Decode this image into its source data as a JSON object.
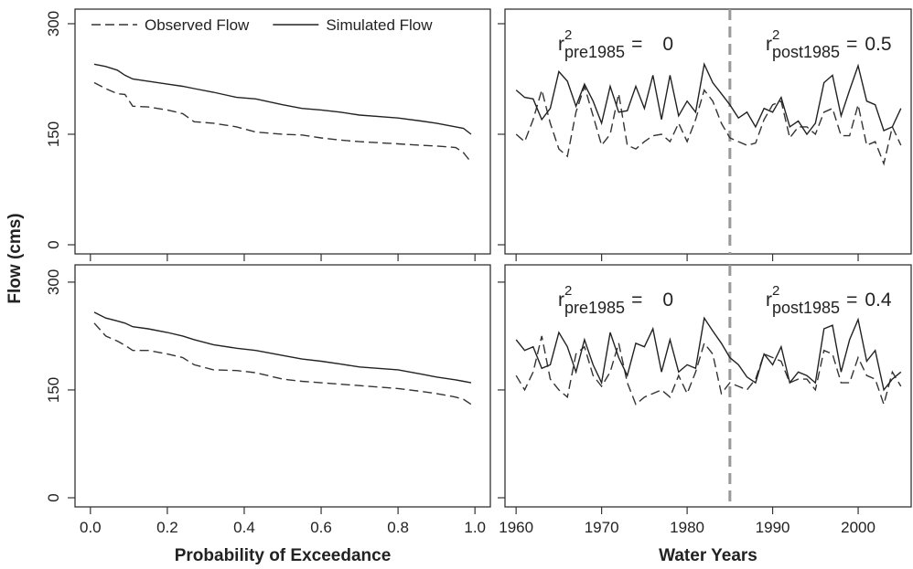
{
  "ylabel": "Flow (cms)",
  "chart_data": [
    {
      "type": "line",
      "xlim": [
        -0.04,
        1.04
      ],
      "ylim": [
        -12.4,
        319.8
      ],
      "xticks": [
        {
          "value": 0,
          "label": "0.0"
        },
        0.2,
        0.4,
        0.6,
        0.8,
        {
          "value": 1,
          "label": "1.0"
        }
      ],
      "yticks": [
        0,
        150,
        300
      ],
      "show_xtick_labels": false,
      "show_ytick_labels": true,
      "legend": true,
      "legend_position": "top-left",
      "x": [
        0.01,
        0.04,
        0.07,
        0.09,
        0.11,
        0.15,
        0.2,
        0.24,
        0.27,
        0.32,
        0.38,
        0.43,
        0.5,
        0.55,
        0.6,
        0.65,
        0.7,
        0.8,
        0.86,
        0.9,
        0.95,
        0.97,
        0.99
      ],
      "series": [
        {
          "name": "Observed Flow",
          "color": "#333333",
          "style": "dashed",
          "values": [
            220,
            212,
            205,
            204,
            188,
            187,
            183,
            178,
            167,
            165,
            160,
            153,
            150,
            149,
            145,
            142,
            140,
            137,
            135,
            134,
            132,
            125,
            112
          ]
        },
        {
          "name": "Simulated Flow",
          "color": "#222222",
          "style": "solid",
          "values": [
            245,
            242,
            237,
            230,
            225,
            222,
            218,
            215,
            212,
            207,
            200,
            198,
            190,
            185,
            183,
            180,
            176,
            172,
            168,
            165,
            160,
            158,
            150
          ]
        }
      ]
    },
    {
      "type": "line",
      "xlim": [
        1958.7,
        2006.2
      ],
      "ylim": [
        -12.4,
        319.8
      ],
      "xticks": [
        1960,
        1970,
        1980,
        1990,
        2000
      ],
      "yticks": [
        0,
        150,
        300
      ],
      "show_xtick_labels": false,
      "show_ytick_labels": false,
      "legend": false,
      "vline": 1985,
      "vline_color": "#999999",
      "x": [
        1960,
        1961,
        1962,
        1963,
        1964,
        1965,
        1966,
        1967,
        1968,
        1969,
        1970,
        1971,
        1972,
        1973,
        1974,
        1975,
        1976,
        1977,
        1978,
        1979,
        1980,
        1981,
        1982,
        1983,
        1984,
        1985,
        1986,
        1987,
        1988,
        1989,
        1990,
        1991,
        1992,
        1993,
        1994,
        1995,
        1996,
        1997,
        1998,
        1999,
        2000,
        2001,
        2002,
        2003,
        2004,
        2005
      ],
      "series": [
        {
          "color": "#333333",
          "style": "dashed",
          "values": [
            150,
            140,
            170,
            210,
            165,
            130,
            120,
            180,
            215,
            175,
            135,
            150,
            205,
            135,
            130,
            140,
            148,
            150,
            140,
            165,
            140,
            170,
            210,
            195,
            165,
            145,
            140,
            135,
            138,
            170,
            190,
            195,
            145,
            160,
            160,
            150,
            180,
            185,
            148,
            148,
            190,
            135,
            140,
            110,
            160,
            135
          ]
        },
        {
          "color": "#222222",
          "style": "solid",
          "values": [
            210,
            200,
            198,
            170,
            185,
            235,
            222,
            188,
            218,
            195,
            165,
            215,
            180,
            182,
            215,
            185,
            230,
            170,
            230,
            175,
            195,
            180,
            245,
            220,
            205,
            190,
            172,
            180,
            160,
            185,
            180,
            200,
            160,
            168,
            150,
            165,
            220,
            230,
            175,
            210,
            243,
            195,
            190,
            155,
            160,
            185
          ]
        }
      ],
      "annotations": [
        {
          "base": "r",
          "sup": "2",
          "sub": "pre1985",
          "eq": "=",
          "value": 0
        },
        {
          "base": "r",
          "sup": "2",
          "sub": "post1985",
          "eq": "=",
          "value": 0.5
        }
      ]
    },
    {
      "type": "line",
      "xlim": [
        -0.04,
        1.04
      ],
      "ylim": [
        -12.7,
        324
      ],
      "xticks": [
        {
          "value": 0,
          "label": "0.0"
        },
        0.2,
        0.4,
        0.6,
        0.8,
        {
          "value": 1,
          "label": "1.0"
        }
      ],
      "yticks": [
        0,
        150,
        300
      ],
      "show_xtick_labels": true,
      "show_ytick_labels": true,
      "legend": false,
      "xlabel": "Probability of Exceedance",
      "x": [
        0.01,
        0.04,
        0.07,
        0.09,
        0.11,
        0.15,
        0.2,
        0.24,
        0.27,
        0.32,
        0.38,
        0.43,
        0.5,
        0.55,
        0.6,
        0.65,
        0.7,
        0.8,
        0.86,
        0.9,
        0.95,
        0.97,
        0.99
      ],
      "series": [
        {
          "color": "#333333",
          "style": "dashed",
          "values": [
            243,
            225,
            218,
            212,
            205,
            205,
            200,
            195,
            185,
            178,
            177,
            174,
            165,
            162,
            160,
            158,
            156,
            152,
            148,
            145,
            140,
            137,
            130
          ]
        },
        {
          "color": "#222222",
          "style": "solid",
          "values": [
            258,
            250,
            246,
            243,
            238,
            235,
            230,
            225,
            220,
            213,
            208,
            205,
            198,
            193,
            190,
            186,
            182,
            178,
            172,
            168,
            164,
            162,
            160
          ]
        }
      ]
    },
    {
      "type": "line",
      "xlim": [
        1958.7,
        2006.2
      ],
      "ylim": [
        -12.7,
        324
      ],
      "xticks": [
        1960,
        1970,
        1980,
        1990,
        2000
      ],
      "yticks": [
        0,
        150,
        300
      ],
      "show_xtick_labels": true,
      "show_ytick_labels": false,
      "legend": false,
      "vline": 1985,
      "vline_color": "#999999",
      "xlabel": "Water Years",
      "x": [
        1960,
        1961,
        1962,
        1963,
        1964,
        1965,
        1966,
        1967,
        1968,
        1969,
        1970,
        1971,
        1972,
        1973,
        1974,
        1975,
        1976,
        1977,
        1978,
        1979,
        1980,
        1981,
        1982,
        1983,
        1984,
        1985,
        1986,
        1987,
        1988,
        1989,
        1990,
        1991,
        1992,
        1993,
        1994,
        1995,
        1996,
        1997,
        1998,
        1999,
        2000,
        2001,
        2002,
        2003,
        2004,
        2005
      ],
      "series": [
        {
          "color": "#333333",
          "style": "dashed",
          "values": [
            170,
            150,
            175,
            225,
            165,
            150,
            140,
            200,
            210,
            170,
            155,
            175,
            215,
            160,
            130,
            140,
            145,
            150,
            140,
            170,
            145,
            175,
            215,
            200,
            145,
            160,
            155,
            150,
            165,
            200,
            195,
            190,
            160,
            165,
            165,
            150,
            205,
            200,
            160,
            160,
            195,
            170,
            165,
            130,
            175,
            155
          ]
        },
        {
          "color": "#222222",
          "style": "solid",
          "values": [
            220,
            205,
            210,
            180,
            185,
            230,
            210,
            175,
            220,
            185,
            160,
            230,
            195,
            170,
            215,
            210,
            235,
            175,
            220,
            175,
            185,
            180,
            250,
            232,
            215,
            195,
            185,
            168,
            160,
            200,
            185,
            210,
            160,
            175,
            170,
            160,
            235,
            240,
            175,
            220,
            248,
            190,
            205,
            150,
            165,
            175
          ]
        }
      ],
      "annotations": [
        {
          "base": "r",
          "sup": "2",
          "sub": "pre1985",
          "eq": "=",
          "value": 0
        },
        {
          "base": "r",
          "sup": "2",
          "sub": "post1985",
          "eq": "=",
          "value": 0.4
        }
      ]
    }
  ]
}
